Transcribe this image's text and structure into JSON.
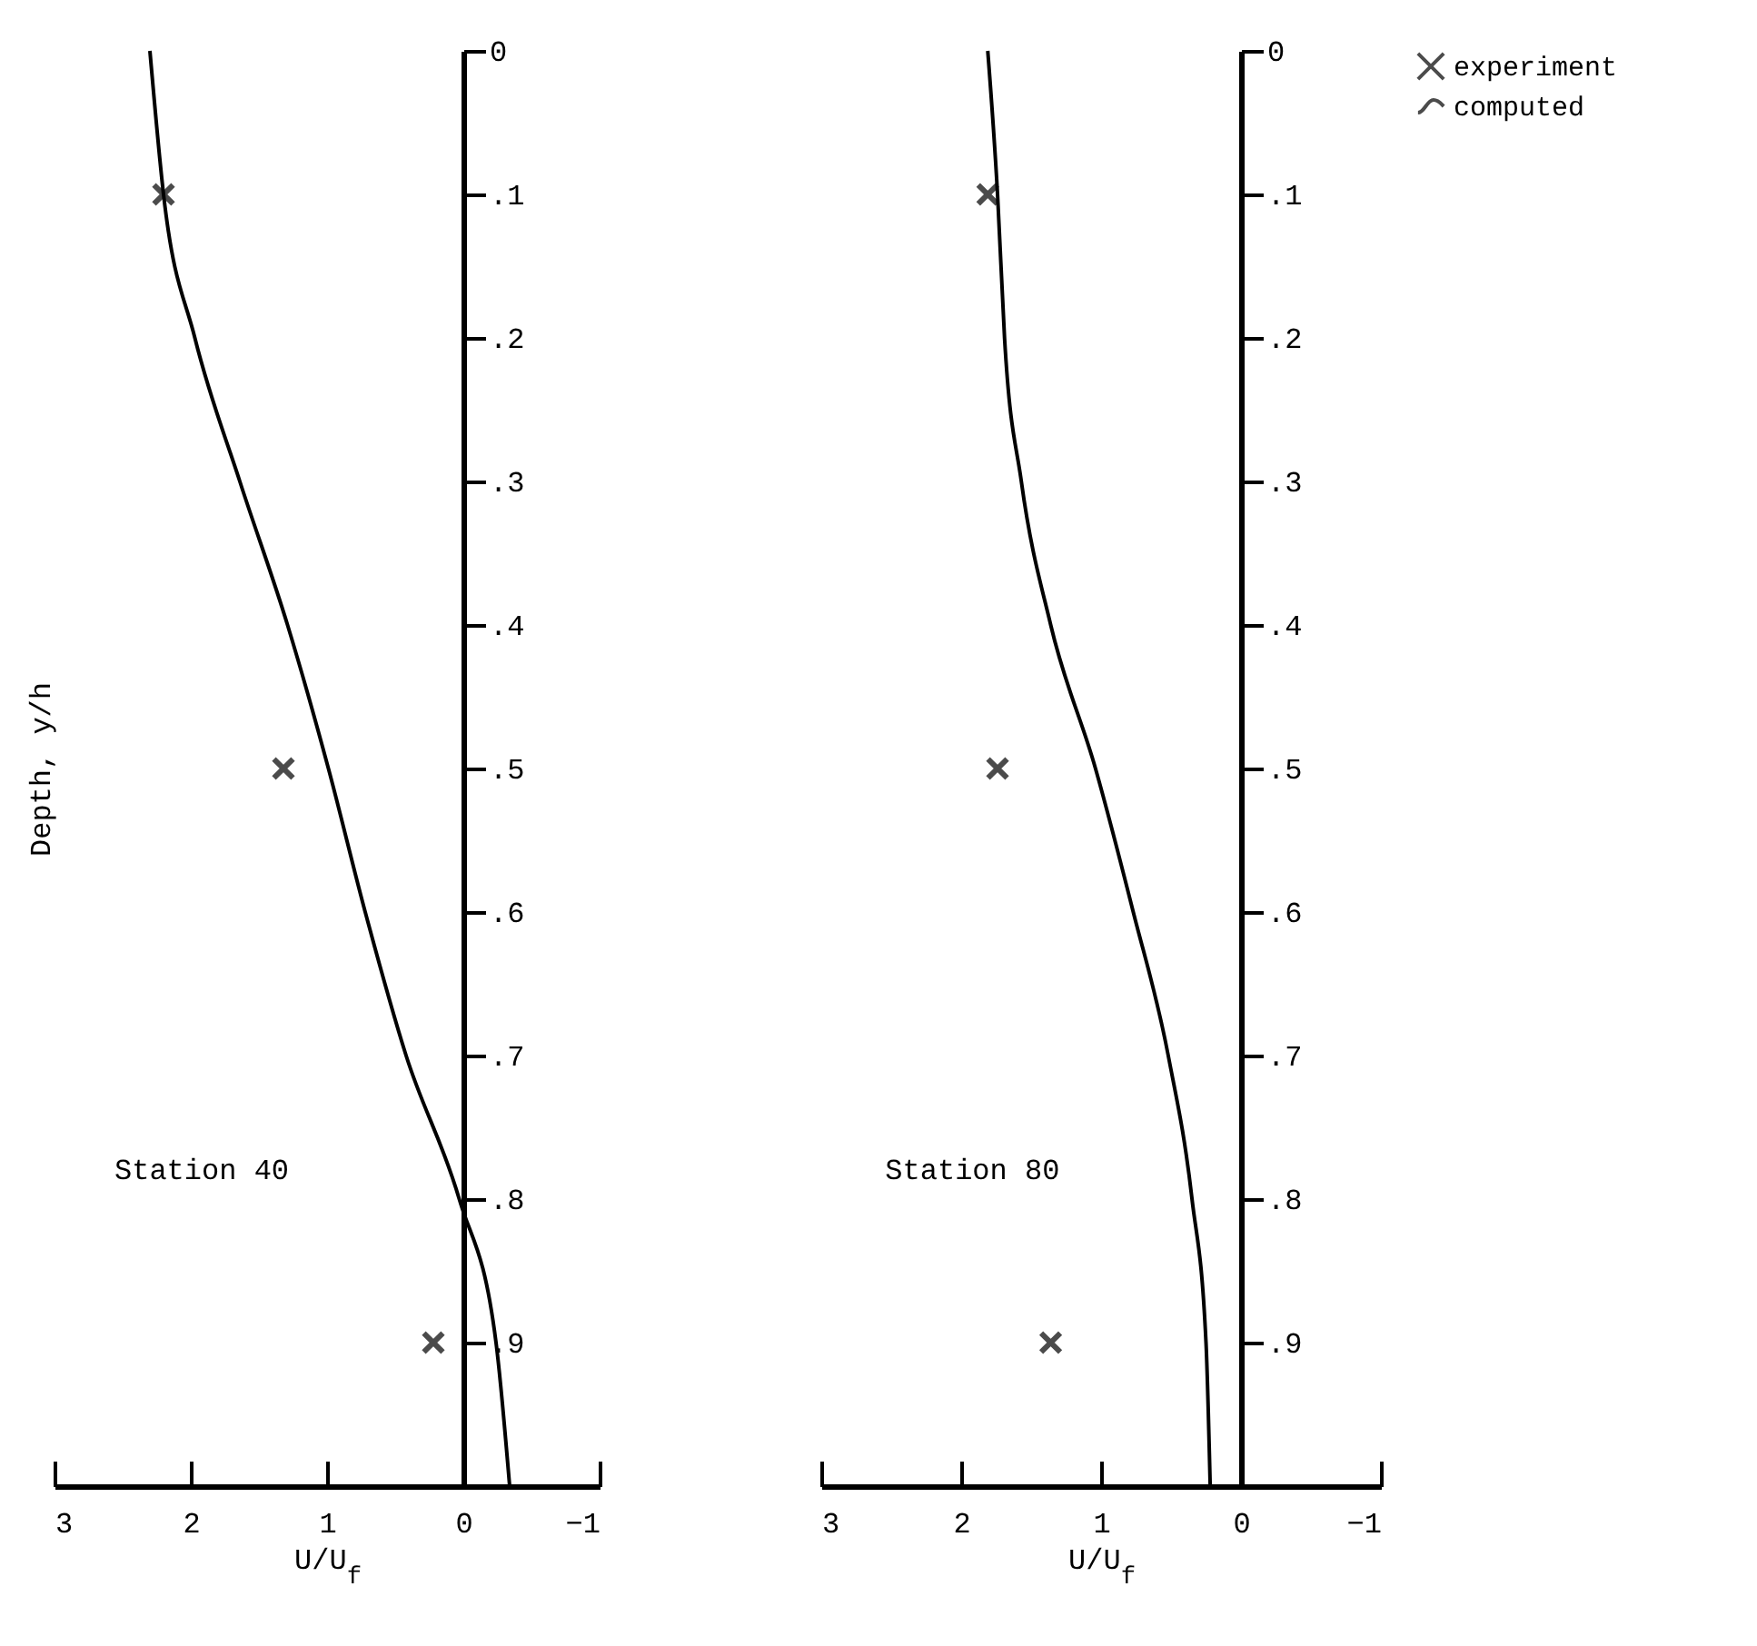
{
  "chart_data": [
    {
      "type": "line",
      "xlabel": "U/U$_{f}$",
      "ylabel": "Depth, y/h",
      "xlim": [
        3,
        -1
      ],
      "xticks": [
        3,
        2,
        1,
        0,
        -1
      ],
      "ylim": [
        1,
        0
      ],
      "yticks": [
        0,
        {
          "value": 0.1,
          "label": ".1"
        },
        {
          "value": 0.2,
          "label": ".2"
        },
        {
          "value": 0.3,
          "label": ".3"
        },
        {
          "value": 0.4,
          "label": ".4"
        },
        {
          "value": 0.5,
          "label": ".5"
        },
        {
          "value": 0.6,
          "label": ".6"
        },
        {
          "value": 0.7,
          "label": ".7"
        },
        {
          "value": 0.8,
          "label": ".8"
        },
        {
          "value": 0.9,
          "label": ".9"
        }
      ],
      "grid": false,
      "legend": "right",
      "annotations": [
        "Station 40"
      ],
      "series": [
        {
          "name": "experiment",
          "type": "scatter",
          "marker": "cross",
          "color": "#000000",
          "x": [
            2.2,
            1.32,
            0.22
          ],
          "values": [
            0.1,
            0.5,
            0.9
          ]
        },
        {
          "name": "computed",
          "color": "#000000",
          "x": [
            2.3,
            2.2,
            1.97,
            1.64,
            1.29,
            0.99,
            0.72,
            0.42,
            0.03,
            -0.24,
            -0.34
          ],
          "values": [
            0,
            0.1,
            0.2,
            0.3,
            0.4,
            0.5,
            0.6,
            0.7,
            0.8,
            0.9,
            1
          ]
        }
      ]
    },
    {
      "type": "line",
      "xlabel": "U/U$_{f}$",
      "xlim": [
        3,
        -1
      ],
      "xticks": [
        3,
        2,
        1,
        0,
        -1
      ],
      "ylim": [
        1,
        0
      ],
      "yticks": [
        0,
        {
          "value": 0.1,
          "label": ".1"
        },
        {
          "value": 0.2,
          "label": ".2"
        },
        {
          "value": 0.3,
          "label": ".3"
        },
        {
          "value": 0.4,
          "label": ".4"
        },
        {
          "value": 0.5,
          "label": ".5"
        },
        {
          "value": 0.6,
          "label": ".6"
        },
        {
          "value": 0.7,
          "label": ".7"
        },
        {
          "value": 0.8,
          "label": ".8"
        },
        {
          "value": 0.9,
          "label": ".9"
        }
      ],
      "grid": false,
      "annotations": [
        "Station 80"
      ],
      "series": [
        {
          "name": "experiment",
          "type": "scatter",
          "marker": "cross",
          "color": "#000000",
          "x": [
            1.81,
            1.74,
            1.36
          ],
          "values": [
            0.1,
            0.5,
            0.9
          ]
        },
        {
          "name": "computed",
          "color": "#000000",
          "x": [
            1.81,
            1.74,
            1.69,
            1.57,
            1.36,
            1.04,
            0.77,
            0.52,
            0.35,
            0.25,
            0.22
          ],
          "values": [
            0,
            0.1,
            0.2,
            0.3,
            0.4,
            0.5,
            0.6,
            0.7,
            0.8,
            0.9,
            1
          ]
        }
      ]
    }
  ]
}
